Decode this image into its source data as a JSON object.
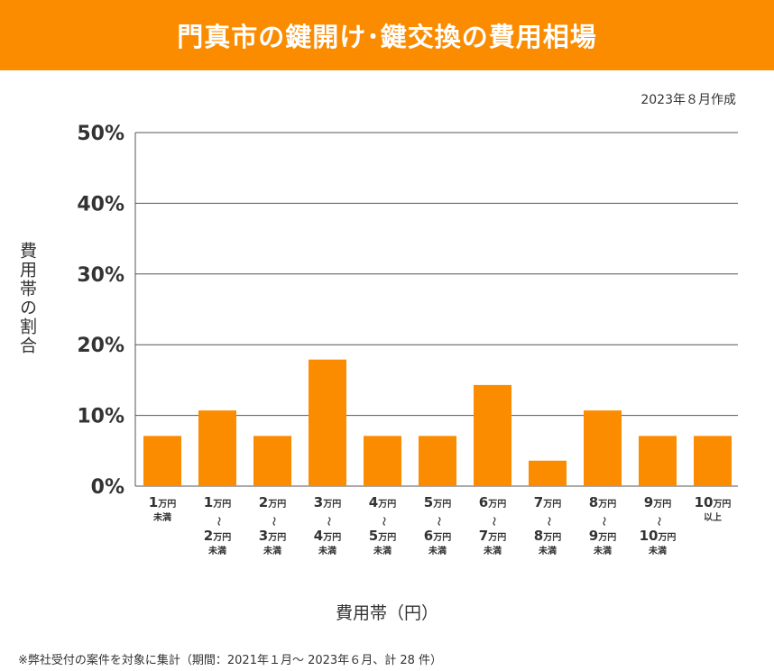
{
  "header": {
    "title": "門真市の鍵開け･鍵交換の費用相場"
  },
  "created": "2023年８月作成",
  "footnote": "※弊社受付の案件を対象に集計（期間：2021年１月～ 2023年６月、計 28 件）",
  "colors": {
    "accent": "#fb8c00",
    "bar": "#fb8c00",
    "grid": "#555555"
  },
  "chart_data": {
    "type": "bar",
    "title": "門真市の鍵開け･鍵交換の費用相場",
    "xlabel": "費用帯（円）",
    "ylabel": "費用帯の割合",
    "ylim": [
      0,
      50
    ],
    "yticks": [
      "0%",
      "10%",
      "20%",
      "30%",
      "40%",
      "50%"
    ],
    "grid": true,
    "categories": [
      [
        "1万円",
        "未満"
      ],
      [
        "1万円",
        "～",
        "2万円",
        "未満"
      ],
      [
        "2万円",
        "～",
        "3万円",
        "未満"
      ],
      [
        "3万円",
        "～",
        "4万円",
        "未満"
      ],
      [
        "4万円",
        "～",
        "5万円",
        "未満"
      ],
      [
        "5万円",
        "～",
        "6万円",
        "未満"
      ],
      [
        "6万円",
        "～",
        "7万円",
        "未満"
      ],
      [
        "7万円",
        "～",
        "8万円",
        "未満"
      ],
      [
        "8万円",
        "～",
        "9万円",
        "未満"
      ],
      [
        "9万円",
        "～",
        "10万円",
        "未満"
      ],
      [
        "10万円",
        "以上"
      ]
    ],
    "values": [
      7.1,
      10.7,
      7.1,
      17.9,
      7.1,
      7.1,
      14.3,
      3.6,
      10.7,
      7.1,
      7.1
    ]
  }
}
